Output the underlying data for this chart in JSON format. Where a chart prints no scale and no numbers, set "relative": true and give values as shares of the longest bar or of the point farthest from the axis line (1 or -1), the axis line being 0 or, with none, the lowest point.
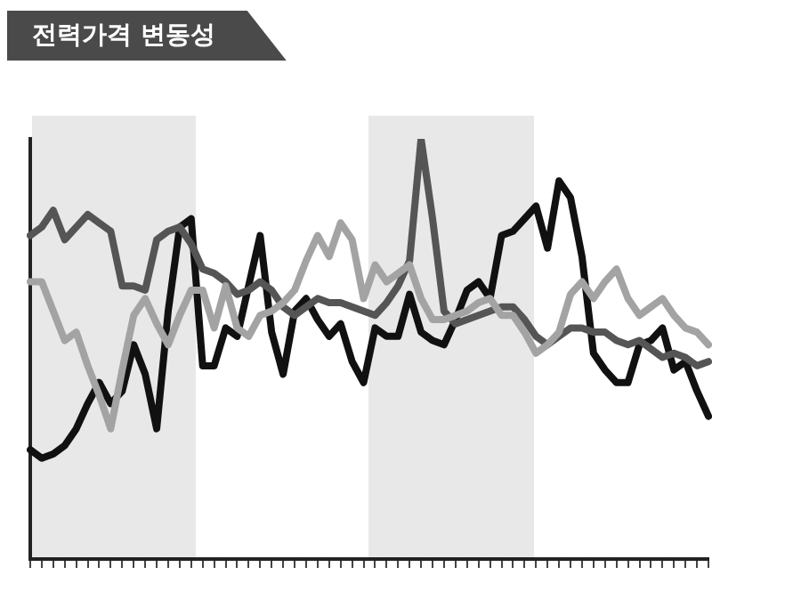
{
  "chart_data": {
    "type": "line",
    "title": "전력가격 변동성",
    "relative": true,
    "grid": false,
    "legend": false,
    "tick_labels": false,
    "marker": "none",
    "line_style": "solid",
    "categories": [
      null,
      null,
      null,
      null,
      null,
      null,
      null,
      null,
      null,
      null,
      null,
      null,
      null,
      null,
      null,
      null,
      null,
      null,
      null,
      null,
      null,
      null,
      null,
      null,
      null,
      null,
      null,
      null,
      null,
      null,
      null,
      null,
      null,
      null,
      null,
      null,
      null,
      null,
      null,
      null,
      null,
      null,
      null,
      null,
      null,
      null,
      null,
      null,
      null,
      null,
      null,
      null,
      null,
      null,
      null,
      null,
      null,
      null,
      null,
      null
    ],
    "series": [
      {
        "color": "#a3a3a3",
        "values": [
          0.66,
          0.66,
          0.59,
          0.52,
          0.54,
          0.46,
          0.39,
          0.31,
          0.45,
          0.58,
          0.62,
          0.56,
          0.51,
          0.58,
          0.64,
          0.64,
          0.55,
          0.65,
          0.55,
          0.53,
          0.58,
          0.59,
          0.61,
          0.64,
          0.71,
          0.77,
          0.72,
          0.8,
          0.76,
          0.62,
          0.7,
          0.66,
          0.68,
          0.7,
          0.62,
          0.57,
          0.57,
          0.58,
          0.59,
          0.61,
          0.62,
          0.58,
          0.58,
          0.54,
          0.49,
          0.51,
          0.54,
          0.63,
          0.66,
          0.62,
          0.66,
          0.69,
          0.62,
          0.58,
          0.6,
          0.62,
          0.58,
          0.55,
          0.54,
          0.51
        ]
      },
      {
        "color": "#555555",
        "values": [
          0.77,
          0.79,
          0.83,
          0.76,
          0.79,
          0.82,
          0.8,
          0.78,
          0.65,
          0.65,
          0.64,
          0.76,
          0.78,
          0.79,
          0.75,
          0.69,
          0.68,
          0.66,
          0.63,
          0.64,
          0.66,
          0.64,
          0.6,
          0.58,
          0.6,
          0.62,
          0.61,
          0.61,
          0.6,
          0.59,
          0.58,
          0.61,
          0.65,
          0.71,
          1,
          0.81,
          0.59,
          0.56,
          0.57,
          0.58,
          0.59,
          0.6,
          0.6,
          0.57,
          0.53,
          0.51,
          0.53,
          0.55,
          0.55,
          0.54,
          0.54,
          0.52,
          0.51,
          0.52,
          0.5,
          0.48,
          0.49,
          0.48,
          0.46,
          0.47
        ]
      },
      {
        "color": "#111111",
        "values": [
          0.26,
          0.24,
          0.25,
          0.27,
          0.31,
          0.37,
          0.42,
          0.37,
          0.4,
          0.51,
          0.44,
          0.31,
          0.59,
          0.79,
          0.81,
          0.46,
          0.46,
          0.55,
          0.53,
          0.65,
          0.77,
          0.54,
          0.44,
          0.59,
          0.62,
          0.57,
          0.53,
          0.56,
          0.47,
          0.42,
          0.55,
          0.53,
          0.53,
          0.63,
          0.54,
          0.52,
          0.51,
          0.57,
          0.64,
          0.66,
          0.62,
          0.77,
          0.78,
          0.81,
          0.84,
          0.74,
          0.9,
          0.86,
          0.72,
          0.49,
          0.45,
          0.42,
          0.42,
          0.51,
          0.52,
          0.55,
          0.45,
          0.47,
          0.4,
          0.34
        ]
      }
    ]
  }
}
